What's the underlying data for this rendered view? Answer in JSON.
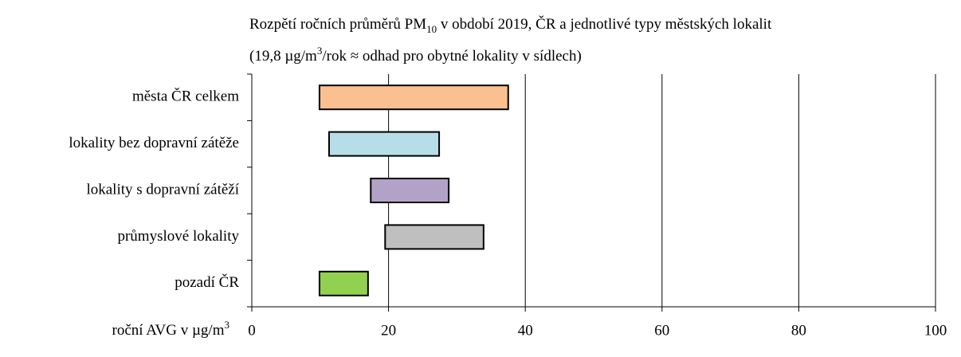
{
  "chart_data": {
    "type": "range_bar",
    "title": [
      "Rozpětí ročních průměrů PM",
      "10",
      "  v období  2019, ČR a jednotlivé typy městských lokalit"
    ],
    "subtitle": [
      "(19,8 µg/m",
      "3",
      "/rok ≈ odhad pro obytné lokality v sídlech)"
    ],
    "x_label": [
      "roční AVG v µg/m",
      "3"
    ],
    "categories": [
      "města ČR celkem",
      "lokality bez dopravní zátěže",
      "lokality s dopravní zátěží",
      "průmyslové lokality",
      "pozadí ČR"
    ],
    "low": [
      9.9,
      11.3,
      17.4,
      19.5,
      9.9
    ],
    "high": [
      37.5,
      27.4,
      28.8,
      33.9,
      17.0
    ],
    "colors": [
      "#fac090",
      "#b7dee8",
      "#b3a2c7",
      "#bfbfbf",
      "#92d050"
    ],
    "xlim": [
      0,
      100
    ],
    "xticks": [
      0,
      20,
      40,
      60,
      80,
      100
    ],
    "grid": true
  }
}
